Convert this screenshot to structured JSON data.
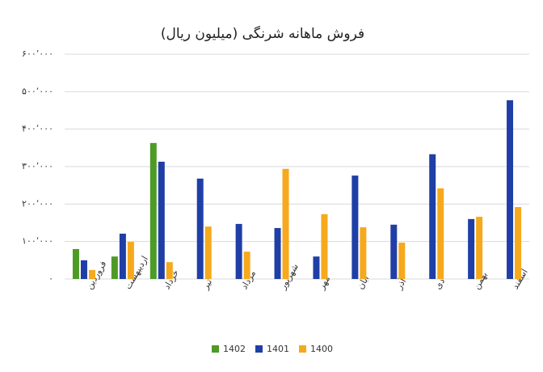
{
  "chart_data": {
    "type": "bar",
    "title": "فروش ماهانه شرنگی (میلیون ریال)",
    "categories": [
      "فروردین",
      "اردیبهشت",
      "خرداد",
      "تیر",
      "مرداد",
      "شهریور",
      "مهر",
      "آبان",
      "آذر",
      "دی",
      "بهمن",
      "اسفند"
    ],
    "series": [
      {
        "name": "1402",
        "color": "#4e9a26",
        "values": [
          80000,
          60000,
          363000,
          null,
          null,
          null,
          null,
          null,
          null,
          null,
          null,
          null
        ]
      },
      {
        "name": "1401",
        "color": "#1f3fa6",
        "values": [
          50000,
          121000,
          313000,
          268000,
          147000,
          136000,
          60000,
          276000,
          145000,
          333000,
          160000,
          477000
        ]
      },
      {
        "name": "1400",
        "color": "#f6a91c",
        "values": [
          24000,
          99000,
          45000,
          140000,
          73000,
          294000,
          173000,
          138000,
          97000,
          242000,
          166000,
          192000
        ]
      }
    ],
    "ylim": [
      0,
      600000
    ],
    "yticks": [
      {
        "value": 0,
        "label": "۰"
      },
      {
        "value": 100000,
        "label": "۱۰۰٬۰۰۰"
      },
      {
        "value": 200000,
        "label": "۲۰۰٬۰۰۰"
      },
      {
        "value": 300000,
        "label": "۳۰۰٬۰۰۰"
      },
      {
        "value": 400000,
        "label": "۴۰۰٬۰۰۰"
      },
      {
        "value": 500000,
        "label": "۵۰۰٬۰۰۰"
      },
      {
        "value": 600000,
        "label": "۶۰۰٬۰۰۰"
      }
    ],
    "grid": true
  }
}
